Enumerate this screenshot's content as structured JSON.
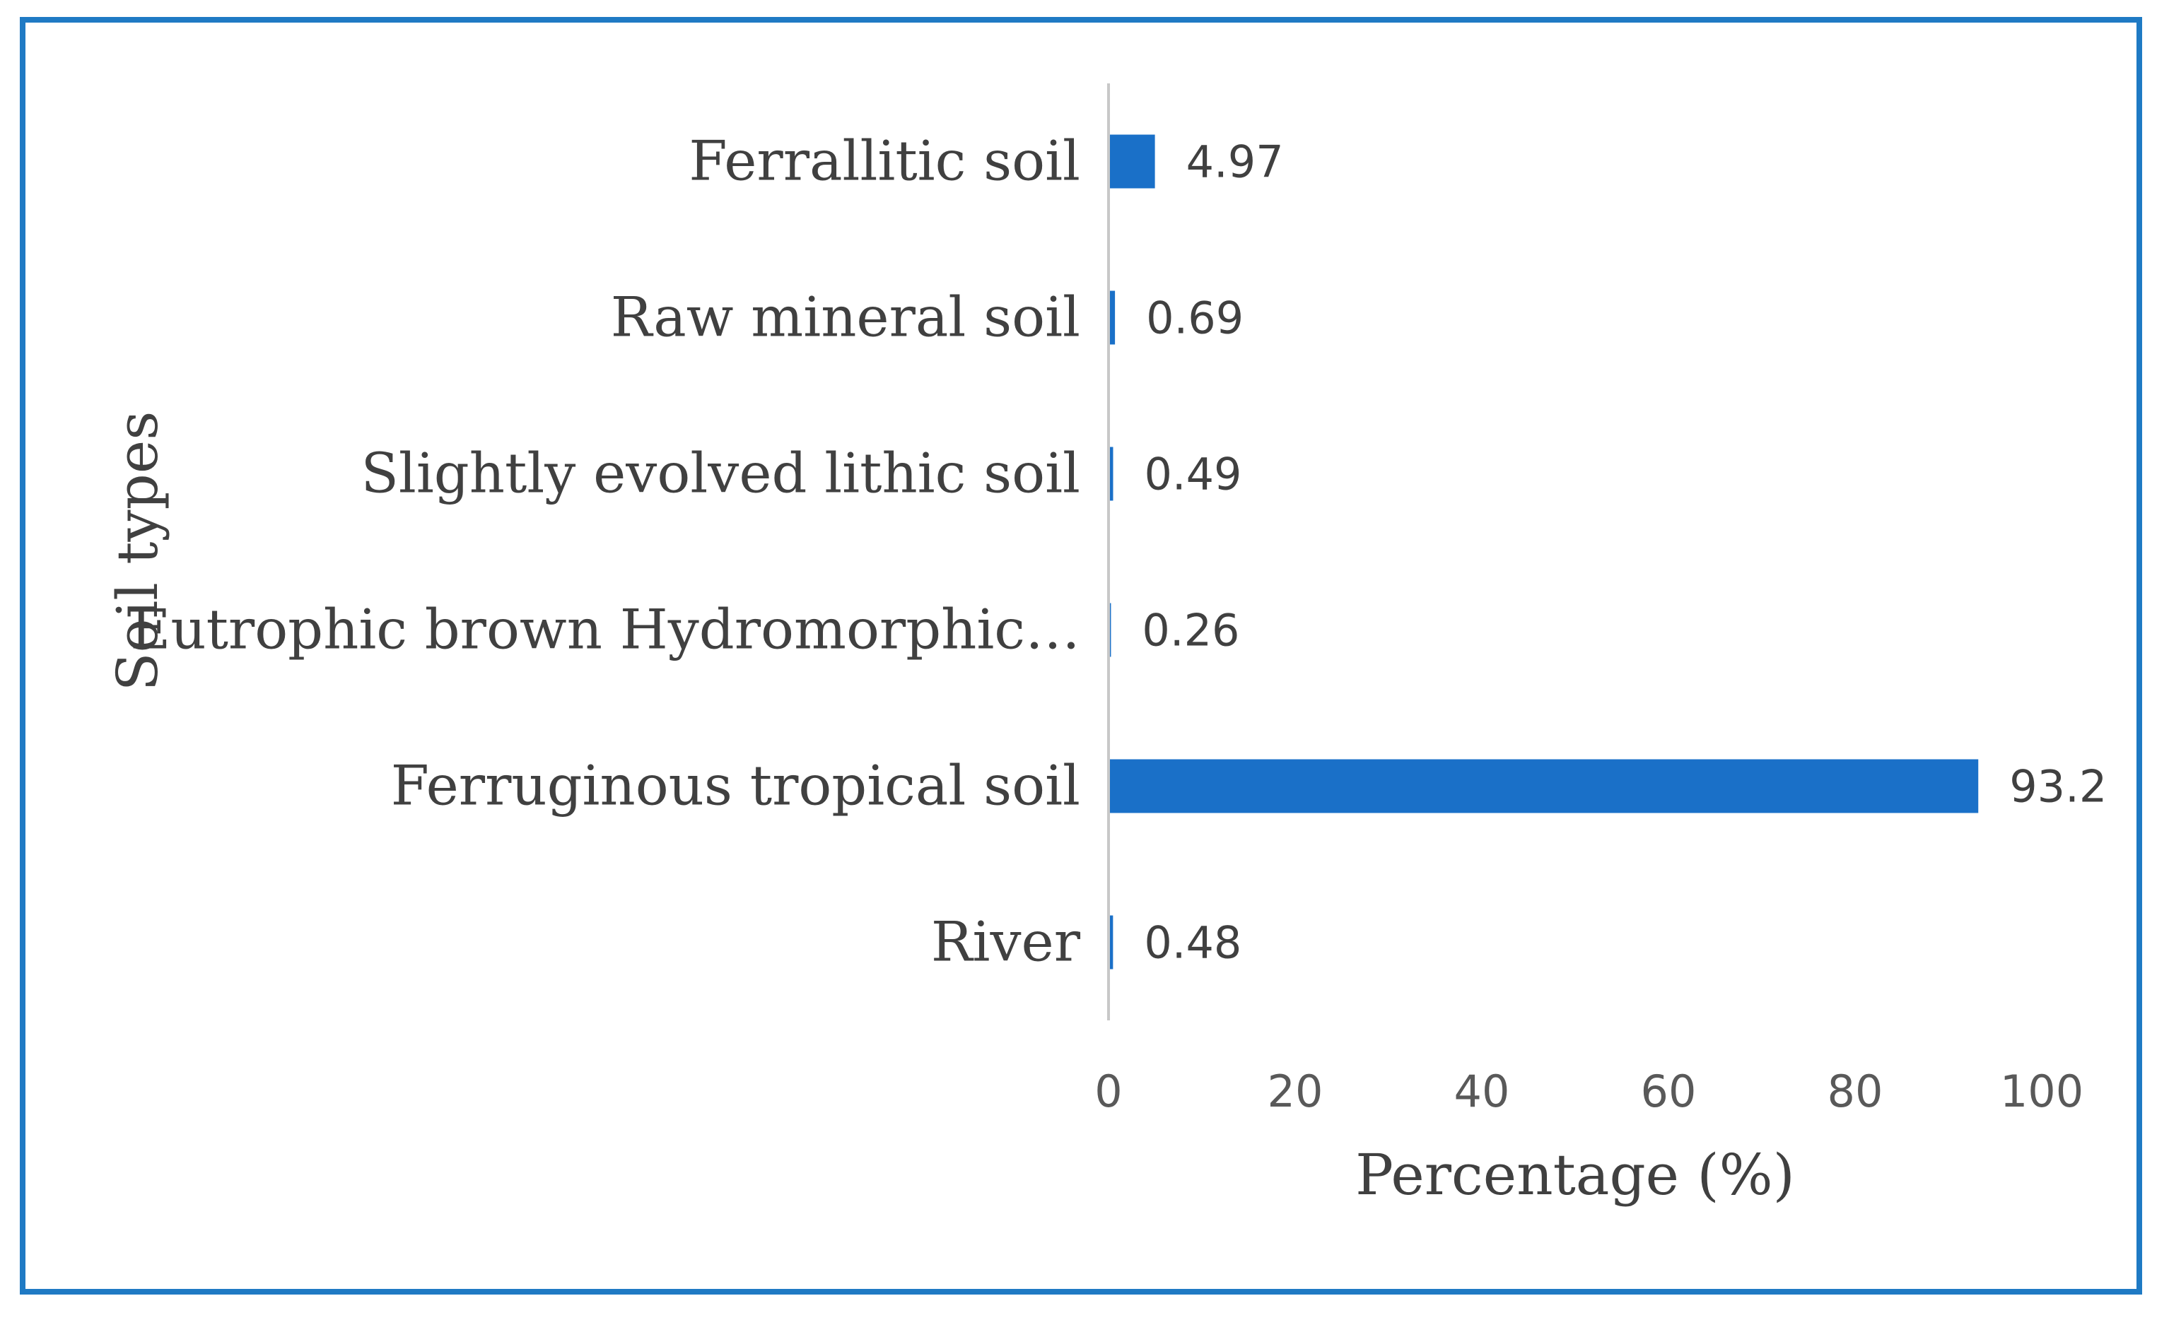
{
  "chart_data": {
    "type": "bar",
    "orientation": "horizontal",
    "categories": [
      "Ferrallitic soil",
      "Raw mineral soil",
      "Slightly evolved  lithic soil",
      "Eutrophic brown Hydromorphic…",
      "Ferruginous tropical soil",
      "River"
    ],
    "values": [
      4.97,
      0.69,
      0.49,
      0.26,
      93.2,
      0.48
    ],
    "data_labels": [
      "4.97",
      "0.69",
      "0.49",
      "0.26",
      "93.2",
      "0.48"
    ],
    "xlabel": "Percentage (%)",
    "ylabel": "Soil types",
    "xlim": [
      0,
      100
    ],
    "xticks": [
      0,
      20,
      40,
      60,
      80,
      100
    ],
    "grid": false,
    "legend": "none",
    "bar_color": "#1a70c8",
    "frame_color": "#1f7ac4",
    "axis_color": "#c8c8c8"
  }
}
